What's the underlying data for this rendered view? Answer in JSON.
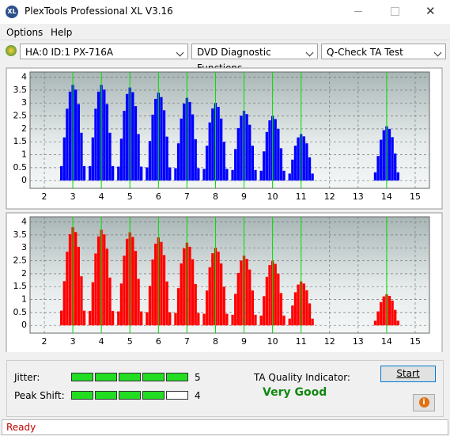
{
  "window": {
    "title": "PlexTools Professional XL V3.16",
    "icon": "XL"
  },
  "menu": [
    "Options",
    "Help"
  ],
  "toolbar": {
    "drive": "HA:0 ID:1  PX-716A",
    "function": "DVD Diagnostic Functions",
    "test": "Q-Check TA Test"
  },
  "chart_data": [
    {
      "type": "bar",
      "color": "#0000ff",
      "x": [
        2.6,
        2.7,
        2.8,
        2.9,
        3,
        3.1,
        3.2,
        3.3,
        3.4,
        3.6,
        3.7,
        3.8,
        3.9,
        4,
        4.1,
        4.2,
        4.3,
        4.4,
        4.6,
        4.7,
        4.8,
        4.9,
        5,
        5.1,
        5.2,
        5.3,
        5.4,
        5.6,
        5.7,
        5.8,
        5.9,
        6,
        6.1,
        6.2,
        6.3,
        6.4,
        6.6,
        6.7,
        6.8,
        6.9,
        7,
        7.1,
        7.2,
        7.3,
        7.4,
        7.6,
        7.7,
        7.8,
        7.9,
        8,
        8.1,
        8.2,
        8.3,
        8.4,
        8.6,
        8.7,
        8.8,
        8.9,
        9,
        9.1,
        9.2,
        9.3,
        9.4,
        9.6,
        9.7,
        9.8,
        9.9,
        10,
        10.1,
        10.2,
        10.3,
        10.4,
        10.6,
        10.7,
        10.8,
        10.9,
        11,
        11.1,
        11.2,
        11.3,
        11.4,
        13.6,
        13.7,
        13.8,
        13.9,
        14,
        14.1,
        14.2,
        14.3,
        14.4
      ],
      "values": [
        0.56,
        1.67,
        2.78,
        3.44,
        3.7,
        3.52,
        2.96,
        1.85,
        0.56,
        0.56,
        1.67,
        2.78,
        3.44,
        3.7,
        3.52,
        2.96,
        1.85,
        0.56,
        0.54,
        1.62,
        2.7,
        3.35,
        3.6,
        3.42,
        2.88,
        1.8,
        0.54,
        0.51,
        1.53,
        2.55,
        3.16,
        3.4,
        3.23,
        2.72,
        1.7,
        0.51,
        0.48,
        1.44,
        2.4,
        2.98,
        3.2,
        3.04,
        2.56,
        1.6,
        0.48,
        0.45,
        1.35,
        2.25,
        2.79,
        3,
        2.85,
        2.4,
        1.5,
        0.45,
        0.41,
        1.22,
        2.03,
        2.51,
        2.7,
        2.57,
        2.16,
        1.35,
        0.41,
        0.38,
        1.13,
        1.88,
        2.33,
        2.5,
        2.38,
        2,
        1.25,
        0.38,
        0.27,
        0.81,
        1.35,
        1.67,
        1.8,
        1.71,
        1.44,
        0.9,
        0.27,
        0.32,
        0.95,
        1.58,
        1.95,
        2.1,
        2,
        1.68,
        1.05,
        0.32
      ],
      "xlim": [
        1.5,
        15.5
      ],
      "xticks": [
        2,
        3,
        4,
        5,
        6,
        7,
        8,
        9,
        10,
        11,
        12,
        13,
        14,
        15
      ],
      "ylim": [
        -0.3,
        4.2
      ],
      "yticks": [
        0,
        0.5,
        1,
        1.5,
        2,
        2.5,
        3,
        3.5,
        4
      ],
      "grid": true,
      "reference_lines": [
        3,
        4,
        5,
        6,
        7,
        8,
        9,
        10,
        11,
        14
      ],
      "reference_color": "#00e000"
    },
    {
      "type": "bar",
      "color": "#ff0000",
      "x": [
        2.6,
        2.7,
        2.8,
        2.9,
        3,
        3.1,
        3.2,
        3.3,
        3.4,
        3.6,
        3.7,
        3.8,
        3.9,
        4,
        4.1,
        4.2,
        4.3,
        4.4,
        4.6,
        4.7,
        4.8,
        4.9,
        5,
        5.1,
        5.2,
        5.3,
        5.4,
        5.6,
        5.7,
        5.8,
        5.9,
        6,
        6.1,
        6.2,
        6.3,
        6.4,
        6.6,
        6.7,
        6.8,
        6.9,
        7,
        7.1,
        7.2,
        7.3,
        7.4,
        7.6,
        7.7,
        7.8,
        7.9,
        8,
        8.1,
        8.2,
        8.3,
        8.4,
        8.6,
        8.7,
        8.8,
        8.9,
        9,
        9.1,
        9.2,
        9.3,
        9.4,
        9.6,
        9.7,
        9.8,
        9.9,
        10,
        10.1,
        10.2,
        10.3,
        10.4,
        10.6,
        10.7,
        10.8,
        10.9,
        11,
        11.1,
        11.2,
        11.3,
        11.4,
        13.6,
        13.7,
        13.8,
        13.9,
        14,
        14.1,
        14.2,
        14.3,
        14.4
      ],
      "values": [
        0.57,
        1.71,
        2.85,
        3.53,
        3.8,
        3.61,
        3.04,
        1.9,
        0.57,
        0.56,
        1.67,
        2.78,
        3.44,
        3.7,
        3.52,
        2.96,
        1.85,
        0.56,
        0.54,
        1.62,
        2.7,
        3.35,
        3.6,
        3.42,
        2.88,
        1.8,
        0.54,
        0.51,
        1.53,
        2.55,
        3.16,
        3.4,
        3.23,
        2.72,
        1.7,
        0.51,
        0.48,
        1.44,
        2.4,
        2.98,
        3.2,
        3.04,
        2.56,
        1.6,
        0.48,
        0.45,
        1.35,
        2.25,
        2.79,
        3,
        2.85,
        2.4,
        1.5,
        0.45,
        0.41,
        1.22,
        2.03,
        2.51,
        2.7,
        2.57,
        2.16,
        1.35,
        0.41,
        0.38,
        1.13,
        1.88,
        2.33,
        2.5,
        2.38,
        2,
        1.25,
        0.38,
        0.26,
        0.77,
        1.28,
        1.58,
        1.7,
        1.62,
        1.36,
        0.85,
        0.26,
        0.18,
        0.54,
        0.9,
        1.12,
        1.2,
        1.14,
        0.96,
        0.6,
        0.18
      ],
      "xlim": [
        1.5,
        15.5
      ],
      "xticks": [
        2,
        3,
        4,
        5,
        6,
        7,
        8,
        9,
        10,
        11,
        12,
        13,
        14,
        15
      ],
      "ylim": [
        -0.3,
        4.2
      ],
      "yticks": [
        0,
        0.5,
        1,
        1.5,
        2,
        2.5,
        3,
        3.5,
        4
      ],
      "grid": true,
      "reference_lines": [
        3,
        4,
        5,
        6,
        7,
        8,
        9,
        10,
        11,
        14
      ],
      "reference_color": "#00e000"
    }
  ],
  "results": {
    "jitter": {
      "label": "Jitter:",
      "value": 5,
      "max": 5
    },
    "peak_shift": {
      "label": "Peak Shift:",
      "value": 4,
      "max": 5
    },
    "ta_label": "TA Quality Indicator:",
    "ta_value": "Very Good",
    "start": "Start"
  },
  "status": "Ready"
}
